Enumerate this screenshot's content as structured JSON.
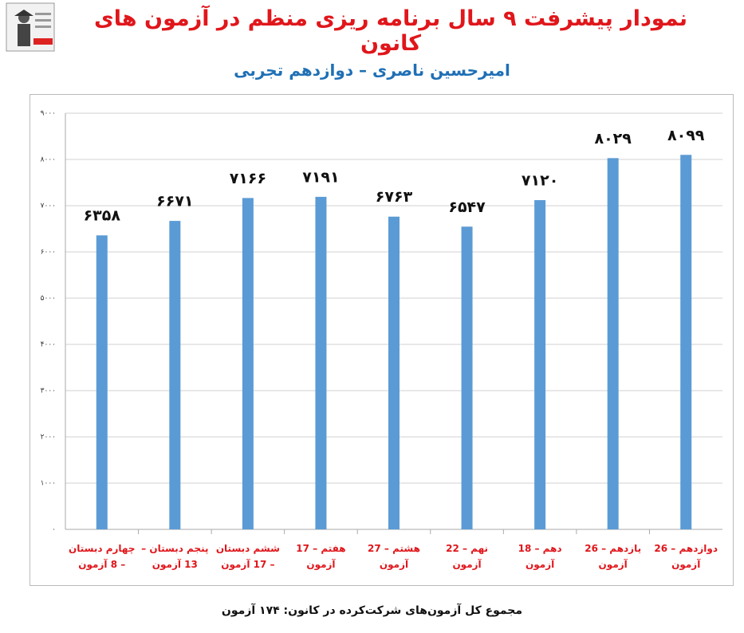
{
  "chart_data": {
    "type": "bar",
    "title": "نمودار پیشرفت ۹ سال برنامه ریزی منظم در آزمون های کانون",
    "subtitle": "امیرحسین ناصری – دوازدهم تجربی",
    "footer": "مجموع کل آزمون‌های شرکت‌کرده در کانون:  ۱۷۴ آزمون",
    "categories": [
      "چهارم دبستان – 8 آزمون",
      "پنجم دبستان – 13 آزمون",
      "ششم دبستان – 17 آزمون",
      "هفتم – 17 آزمون",
      "هشتم – 27 آزمون",
      "نهم – 22 آزمون",
      "دهم – 18 آزمون",
      "یازدهم – 26 آزمون",
      "دوازدهم – 26 آزمون"
    ],
    "values": [
      6358,
      6671,
      7166,
      7191,
      6763,
      6547,
      7120,
      8029,
      8099
    ],
    "value_labels": [
      "۶۳۵۸",
      "۶۶۷۱",
      "۷۱۶۶",
      "۷۱۹۱",
      "۶۷۶۳",
      "۶۵۴۷",
      "۷۱۲۰",
      "۸۰۲۹",
      "۸۰۹۹"
    ],
    "color": "#5b9bd5",
    "ylim": [
      0,
      9000
    ],
    "yticks": [
      {
        "value": 0,
        "label": "۰"
      },
      {
        "value": 1000,
        "label": "۱۰۰۰"
      },
      {
        "value": 2000,
        "label": "۲۰۰۰"
      },
      {
        "value": 3000,
        "label": "۳۰۰۰"
      },
      {
        "value": 4000,
        "label": "۴۰۰۰"
      },
      {
        "value": 5000,
        "label": "۵۰۰۰"
      },
      {
        "value": 6000,
        "label": "۶۰۰۰"
      },
      {
        "value": 7000,
        "label": "۷۰۰۰"
      },
      {
        "value": 8000,
        "label": "۸۰۰۰"
      },
      {
        "value": 9000,
        "label": "۹۰۰۰"
      }
    ],
    "grid": true
  }
}
